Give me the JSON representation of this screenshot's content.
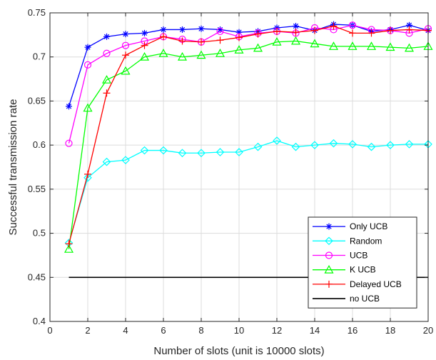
{
  "chart_data": {
    "type": "line",
    "title": "",
    "xlabel": "Number of slots (unit is 10000 slots)",
    "ylabel": "Successful transmission rate",
    "xlim": [
      0,
      20
    ],
    "ylim": [
      0.4,
      0.75
    ],
    "xticks": [
      0,
      2,
      4,
      6,
      8,
      10,
      12,
      14,
      16,
      18,
      20
    ],
    "yticks": [
      0.4,
      0.45,
      0.5,
      0.55,
      0.6,
      0.65,
      0.7,
      0.75
    ],
    "ytick_labels": [
      "0.4",
      "0.45",
      "0.5",
      "0.55",
      "0.6",
      "0.65",
      "0.7",
      "0.75"
    ],
    "grid": true,
    "legend_position": "bottom-right",
    "x": [
      1,
      2,
      3,
      4,
      5,
      6,
      7,
      8,
      9,
      10,
      11,
      12,
      13,
      14,
      15,
      16,
      17,
      18,
      19,
      20
    ],
    "series": [
      {
        "name": "Only UCB",
        "color": "#0000ff",
        "marker": "asterisk",
        "values": [
          0.644,
          0.711,
          0.723,
          0.726,
          0.727,
          0.731,
          0.731,
          0.732,
          0.731,
          0.728,
          0.729,
          0.733,
          0.735,
          0.73,
          0.737,
          0.736,
          0.729,
          0.731,
          0.736,
          0.73
        ]
      },
      {
        "name": "Random",
        "color": "#00ffff",
        "marker": "diamond",
        "values": [
          0.489,
          0.563,
          0.581,
          0.583,
          0.594,
          0.594,
          0.591,
          0.591,
          0.592,
          0.592,
          0.598,
          0.605,
          0.598,
          0.6,
          0.602,
          0.601,
          0.598,
          0.6,
          0.601,
          0.601
        ]
      },
      {
        "name": "UCB",
        "color": "#ff00ff",
        "marker": "circle",
        "values": [
          0.602,
          0.691,
          0.704,
          0.713,
          0.718,
          0.723,
          0.72,
          0.717,
          0.729,
          0.723,
          0.727,
          0.729,
          0.727,
          0.733,
          0.731,
          0.736,
          0.731,
          0.73,
          0.727,
          0.732
        ]
      },
      {
        "name": "K UCB",
        "color": "#00ff00",
        "marker": "triangle",
        "values": [
          0.482,
          0.642,
          0.674,
          0.684,
          0.7,
          0.704,
          0.7,
          0.702,
          0.704,
          0.708,
          0.71,
          0.717,
          0.718,
          0.715,
          0.712,
          0.712,
          0.712,
          0.711,
          0.71,
          0.712
        ]
      },
      {
        "name": "Delayed UCB",
        "color": "#ff0000",
        "marker": "plus",
        "values": [
          0.488,
          0.567,
          0.659,
          0.702,
          0.713,
          0.723,
          0.718,
          0.717,
          0.719,
          0.722,
          0.726,
          0.729,
          0.728,
          0.73,
          0.735,
          0.727,
          0.727,
          0.73,
          0.731,
          0.73
        ]
      },
      {
        "name": "no UCB",
        "color": "#000000",
        "marker": "none",
        "values": [
          0.45,
          0.45,
          0.45,
          0.45,
          0.45,
          0.45,
          0.45,
          0.45,
          0.45,
          0.45,
          0.45,
          0.45,
          0.45,
          0.45,
          0.45,
          0.45,
          0.45,
          0.45,
          0.45,
          0.45
        ]
      }
    ]
  }
}
